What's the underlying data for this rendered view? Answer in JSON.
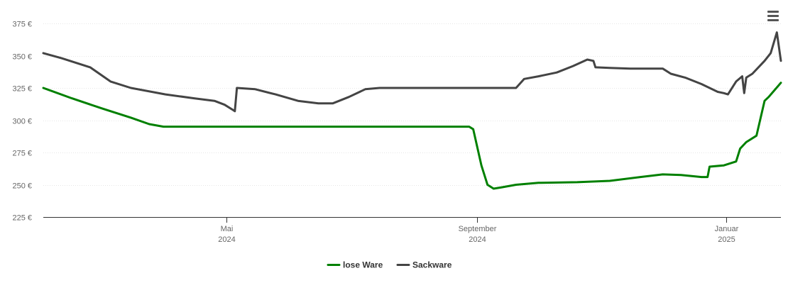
{
  "chart_data": {
    "type": "line",
    "ylim": [
      225,
      375
    ],
    "y_ticks": [
      {
        "value": 225,
        "label": "225 €"
      },
      {
        "value": 250,
        "label": "250 €"
      },
      {
        "value": 275,
        "label": "275 €"
      },
      {
        "value": 300,
        "label": "300 €"
      },
      {
        "value": 325,
        "label": "325 €"
      },
      {
        "value": 350,
        "label": "350 €"
      },
      {
        "value": 375,
        "label": "375 €"
      }
    ],
    "x_ticks": [
      {
        "date": "2024-05-01",
        "label_month": "Mai",
        "label_year": "2024"
      },
      {
        "date": "2024-09-01",
        "label_month": "September",
        "label_year": "2024"
      },
      {
        "date": "2025-01-01",
        "label_month": "Januar",
        "label_year": "2025"
      }
    ],
    "xlim": [
      "2024-02-01",
      "2025-01-28"
    ],
    "grid": "horizontal",
    "legend_position": "bottom-center",
    "series": [
      {
        "name": "lose Ware",
        "color": "#008000",
        "points": [
          [
            "2024-02-01",
            325
          ],
          [
            "2024-02-15",
            317
          ],
          [
            "2024-03-01",
            309
          ],
          [
            "2024-03-15",
            302
          ],
          [
            "2024-03-24",
            297
          ],
          [
            "2024-03-31",
            295
          ],
          [
            "2024-04-15",
            295
          ],
          [
            "2024-05-01",
            295
          ],
          [
            "2024-06-01",
            295
          ],
          [
            "2024-07-01",
            295
          ],
          [
            "2024-08-01",
            295
          ],
          [
            "2024-08-28",
            295
          ],
          [
            "2024-08-30",
            293
          ],
          [
            "2024-09-03",
            265
          ],
          [
            "2024-09-06",
            250
          ],
          [
            "2024-09-09",
            247
          ],
          [
            "2024-09-13",
            248
          ],
          [
            "2024-09-20",
            250
          ],
          [
            "2024-10-01",
            251.5
          ],
          [
            "2024-10-20",
            252
          ],
          [
            "2024-11-05",
            253
          ],
          [
            "2024-11-20",
            256
          ],
          [
            "2024-12-01",
            258
          ],
          [
            "2024-12-10",
            257.5
          ],
          [
            "2024-12-20",
            256
          ],
          [
            "2024-12-23",
            256
          ],
          [
            "2024-12-24",
            264
          ],
          [
            "2024-12-31",
            265
          ],
          [
            "2025-01-06",
            268
          ],
          [
            "2025-01-08",
            278
          ],
          [
            "2025-01-11",
            283
          ],
          [
            "2025-01-16",
            288
          ],
          [
            "2025-01-20",
            315
          ],
          [
            "2025-01-22",
            318
          ],
          [
            "2025-01-28",
            329
          ]
        ]
      },
      {
        "name": "Sackware",
        "color": "#444444",
        "points": [
          [
            "2024-02-01",
            352
          ],
          [
            "2024-02-10",
            348
          ],
          [
            "2024-02-24",
            341
          ],
          [
            "2024-03-05",
            330
          ],
          [
            "2024-03-15",
            325
          ],
          [
            "2024-04-01",
            320
          ],
          [
            "2024-04-15",
            317
          ],
          [
            "2024-04-25",
            315
          ],
          [
            "2024-04-30",
            312
          ],
          [
            "2024-05-04",
            308
          ],
          [
            "2024-05-05",
            307
          ],
          [
            "2024-05-06",
            325
          ],
          [
            "2024-05-15",
            324
          ],
          [
            "2024-05-25",
            320
          ],
          [
            "2024-06-05",
            315
          ],
          [
            "2024-06-15",
            313
          ],
          [
            "2024-06-22",
            313
          ],
          [
            "2024-06-30",
            318
          ],
          [
            "2024-07-08",
            324
          ],
          [
            "2024-07-15",
            325
          ],
          [
            "2024-08-01",
            325
          ],
          [
            "2024-09-01",
            325
          ],
          [
            "2024-09-15",
            325
          ],
          [
            "2024-09-20",
            325
          ],
          [
            "2024-09-24",
            332
          ],
          [
            "2024-10-01",
            334
          ],
          [
            "2024-10-10",
            337
          ],
          [
            "2024-10-18",
            342
          ],
          [
            "2024-10-25",
            347
          ],
          [
            "2024-10-28",
            346
          ],
          [
            "2024-10-29",
            341
          ],
          [
            "2024-11-05",
            340.5
          ],
          [
            "2024-11-15",
            340
          ],
          [
            "2024-12-01",
            340
          ],
          [
            "2024-12-05",
            336
          ],
          [
            "2024-12-12",
            333
          ],
          [
            "2024-12-20",
            328
          ],
          [
            "2024-12-28",
            322
          ],
          [
            "2024-12-31",
            321
          ],
          [
            "2025-01-02",
            320
          ],
          [
            "2025-01-06",
            330
          ],
          [
            "2025-01-09",
            334
          ],
          [
            "2025-01-10",
            321
          ],
          [
            "2025-01-11",
            333
          ],
          [
            "2025-01-14",
            336
          ],
          [
            "2025-01-20",
            346
          ],
          [
            "2025-01-23",
            352
          ],
          [
            "2025-01-26",
            368
          ],
          [
            "2025-01-28",
            346
          ]
        ]
      }
    ]
  }
}
